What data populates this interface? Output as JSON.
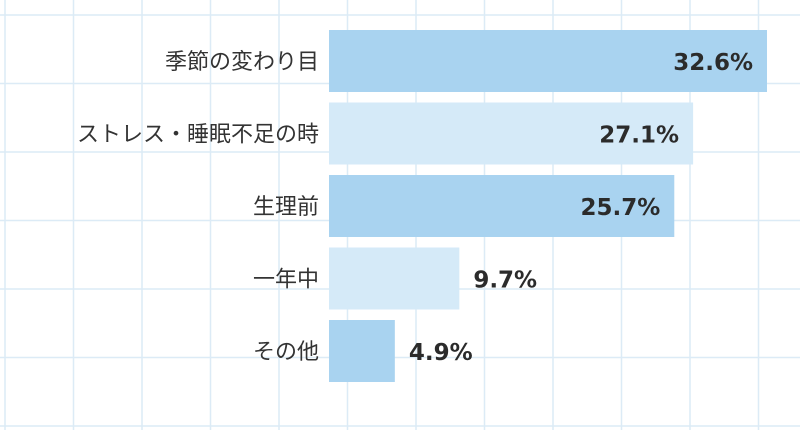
{
  "chart_data": {
    "type": "bar",
    "orientation": "horizontal",
    "categories": [
      "季節の変わり目",
      "ストレス・睡眠不足の時",
      "生理前",
      "一年中",
      "その他"
    ],
    "values": [
      32.6,
      27.1,
      25.7,
      9.7,
      4.9
    ],
    "value_labels": [
      "32.6%",
      "27.1%",
      "25.7%",
      "9.7%",
      "4.9%"
    ],
    "unit": "%",
    "xlim": [
      0,
      34
    ],
    "grid": true,
    "legend": "none",
    "bar_colors": [
      "#a9d3f0",
      "#d5eaf8",
      "#a9d3f0",
      "#d5eaf8",
      "#a9d3f0"
    ],
    "grid_color": "#dcebf6"
  }
}
